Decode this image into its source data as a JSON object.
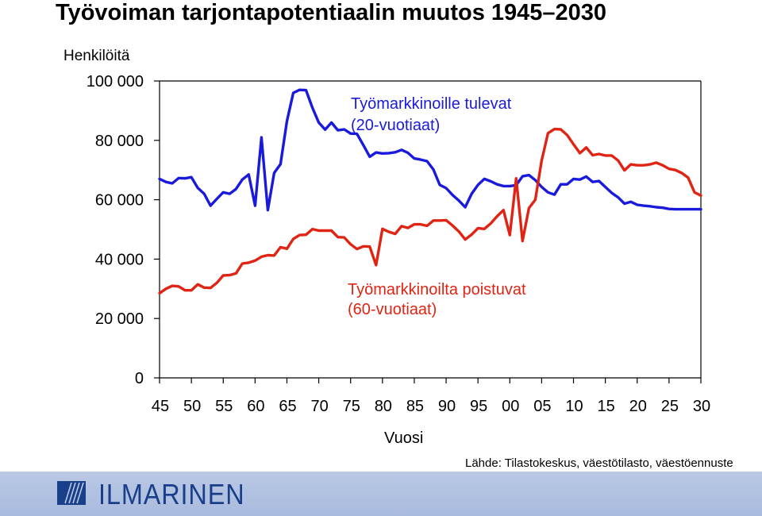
{
  "title": "Työvoiman tarjontapotentiaalin muutos 1945–2030",
  "unit_label": "Henkilöitä",
  "source": "Lähde: Tilastokeskus, väestötilasto, väestöennuste",
  "logo": {
    "text": "ILMARINEN",
    "icon": "ilmarinen-logo-icon"
  },
  "chart_data": {
    "type": "line",
    "title": "Työvoiman tarjontapotentiaalin muutos 1945–2030",
    "xlabel": "Vuosi",
    "ylabel": "Henkilöitä",
    "xlim": [
      1945,
      2030
    ],
    "ylim": [
      0,
      100000
    ],
    "grid": false,
    "y_ticks": [
      0,
      20000,
      40000,
      60000,
      80000,
      100000
    ],
    "y_tick_labels": [
      "0",
      "20 000",
      "40 000",
      "60 000",
      "80 000",
      "100 000"
    ],
    "x_ticks": [
      1945,
      1950,
      1955,
      1960,
      1965,
      1970,
      1975,
      1980,
      1985,
      1990,
      1995,
      2000,
      2005,
      2010,
      2015,
      2020,
      2025,
      2030
    ],
    "x_tick_labels": [
      "45",
      "50",
      "55",
      "60",
      "65",
      "70",
      "75",
      "80",
      "85",
      "90",
      "95",
      "00",
      "05",
      "10",
      "15",
      "20",
      "25",
      "30"
    ],
    "x": [
      1945,
      1946,
      1947,
      1948,
      1949,
      1950,
      1951,
      1952,
      1953,
      1954,
      1955,
      1956,
      1957,
      1958,
      1959,
      1960,
      1961,
      1962,
      1963,
      1964,
      1965,
      1966,
      1967,
      1968,
      1969,
      1970,
      1971,
      1972,
      1973,
      1974,
      1975,
      1976,
      1977,
      1978,
      1979,
      1980,
      1981,
      1982,
      1983,
      1984,
      1985,
      1986,
      1987,
      1988,
      1989,
      1990,
      1991,
      1992,
      1993,
      1994,
      1995,
      1996,
      1997,
      1998,
      1999,
      2000,
      2001,
      2002,
      2003,
      2004,
      2005,
      2006,
      2007,
      2008,
      2009,
      2010,
      2011,
      2012,
      2013,
      2014,
      2015,
      2016,
      2017,
      2018,
      2019,
      2020,
      2021,
      2022,
      2023,
      2024,
      2025,
      2026,
      2027,
      2028,
      2029,
      2030
    ],
    "series": [
      {
        "name": "Työmarkkinoille tulevat",
        "name_line2": "(20-vuotiaat)",
        "color": "#1a1adc",
        "values": [
          67000,
          66000,
          65500,
          67300,
          67200,
          67600,
          64000,
          62000,
          58000,
          60300,
          62500,
          62000,
          63600,
          66800,
          68500,
          58000,
          81000,
          56500,
          69000,
          72000,
          86500,
          96000,
          97000,
          96900,
          91000,
          86000,
          83600,
          86000,
          83400,
          83700,
          82300,
          82200,
          78400,
          74500,
          75900,
          75600,
          75700,
          76000,
          76800,
          75800,
          73900,
          73500,
          73000,
          70200,
          65000,
          63900,
          61600,
          59700,
          57500,
          62000,
          65000,
          67000,
          66200,
          65200,
          64600,
          64600,
          64900,
          67900,
          68300,
          66600,
          64300,
          62500,
          61700,
          65200,
          65200,
          67000,
          66800,
          67800,
          66000,
          66300,
          64300,
          62300,
          60800,
          58700,
          59300,
          58300,
          58000,
          57800,
          57500,
          57300,
          56900,
          56800,
          56800,
          56800,
          56800,
          56800
        ]
      },
      {
        "name": "Työmarkkinoilta poistuvat",
        "name_line2": "(60-vuotiaat)",
        "color": "#e02414",
        "values": [
          28500,
          30000,
          31000,
          30800,
          29500,
          29500,
          31500,
          30400,
          30300,
          32000,
          34500,
          34600,
          35200,
          38500,
          38800,
          39500,
          40800,
          41300,
          41200,
          44000,
          43500,
          46800,
          48100,
          48200,
          50100,
          49600,
          49600,
          49600,
          47400,
          47300,
          45000,
          43400,
          44300,
          44200,
          38000,
          50200,
          49200,
          48500,
          51100,
          50500,
          51700,
          51700,
          51200,
          53000,
          53000,
          53100,
          51300,
          49300,
          46600,
          48300,
          50400,
          50200,
          52000,
          54400,
          56500,
          48100,
          67200,
          46100,
          57200,
          60000,
          73200,
          82400,
          83800,
          83700,
          81800,
          78700,
          75700,
          77600,
          75000,
          75400,
          74900,
          74900,
          73200,
          69900,
          71900,
          71600,
          71600,
          71900,
          72500,
          71600,
          70400,
          70000,
          69000,
          67400,
          62500,
          61400
        ]
      }
    ]
  }
}
